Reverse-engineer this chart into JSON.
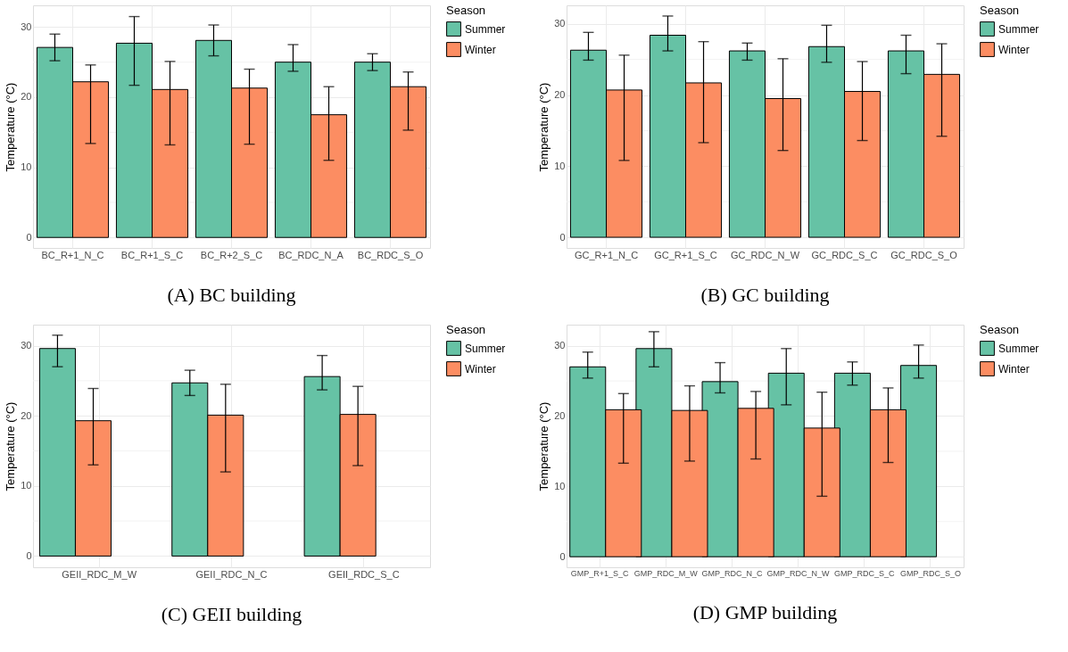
{
  "chart_data": [
    {
      "type": "bar",
      "categories": [
        "BC_R+1_N_C",
        "BC_R+1_S_C",
        "BC_R+2_S_C",
        "BC_RDC_N_A",
        "BC_RDC_S_O"
      ],
      "ylabel": "Temperature (°C)",
      "legend_title": "Season",
      "legend": "right",
      "grid": true,
      "ylim": [
        -1.5,
        33.1
      ],
      "yticks": [
        0,
        {
          "value": 5,
          "label": null
        },
        10,
        {
          "value": 15,
          "label": null
        },
        20,
        {
          "value": 25,
          "label": null
        },
        30
      ],
      "annotations": [
        "(A)  BC building"
      ],
      "series": [
        {
          "name": "Summer",
          "color": "#66c2a5",
          "values": [
            27.1,
            27.7,
            28.1,
            25.0,
            25.0
          ],
          "errors": [
            [
              25.2,
              29.0
            ],
            [
              21.7,
              31.5
            ],
            [
              25.9,
              30.3
            ],
            [
              23.7,
              27.5
            ],
            [
              23.8,
              26.2
            ]
          ]
        },
        {
          "name": "Winter",
          "color": "#fc8d62",
          "values": [
            22.2,
            21.1,
            21.3,
            17.5,
            21.5
          ],
          "errors": [
            [
              13.4,
              24.6
            ],
            [
              13.2,
              25.1
            ],
            [
              13.3,
              24.0
            ],
            [
              11.0,
              21.5
            ],
            [
              15.3,
              23.6
            ]
          ]
        }
      ]
    },
    {
      "type": "bar",
      "categories": [
        "GC_R+1_N_C",
        "GC_R+1_S_C",
        "GC_RDC_N_W",
        "GC_RDC_S_C",
        "GC_RDC_S_O"
      ],
      "ylabel": "Temperature (°C)",
      "legend_title": "Season",
      "legend": "right",
      "grid": true,
      "ylim": [
        -1.5,
        32.6
      ],
      "yticks": [
        0,
        {
          "value": 5,
          "label": null
        },
        10,
        {
          "value": 15,
          "label": null
        },
        20,
        {
          "value": 25,
          "label": null
        },
        30
      ],
      "annotations": [
        "(B)  GC building"
      ],
      "series": [
        {
          "name": "Summer",
          "color": "#66c2a5",
          "values": [
            26.3,
            28.4,
            26.2,
            26.8,
            26.2
          ],
          "errors": [
            [
              24.9,
              28.8
            ],
            [
              26.2,
              31.1
            ],
            [
              24.9,
              27.3
            ],
            [
              24.6,
              29.8
            ],
            [
              23.0,
              28.4
            ]
          ]
        },
        {
          "name": "Winter",
          "color": "#fc8d62",
          "values": [
            20.7,
            21.7,
            19.5,
            20.5,
            22.9
          ],
          "errors": [
            [
              10.8,
              25.6
            ],
            [
              13.3,
              27.5
            ],
            [
              12.2,
              25.1
            ],
            [
              13.6,
              24.7
            ],
            [
              14.2,
              27.2
            ]
          ]
        }
      ]
    },
    {
      "type": "bar",
      "categories": [
        "GEII_RDC_M_W",
        "GEII_RDC_N_C",
        "GEII_RDC_S_C"
      ],
      "ylabel": "Temperature (°C)",
      "legend_title": "Season",
      "legend": "right",
      "grid": true,
      "ylim": [
        -1.6,
        33.0
      ],
      "yticks": [
        0,
        {
          "value": 5,
          "label": null
        },
        10,
        {
          "value": 15,
          "label": null
        },
        20,
        {
          "value": 25,
          "label": null
        },
        30
      ],
      "annotations": [
        "(C)  GEII building"
      ],
      "series": [
        {
          "name": "Summer",
          "color": "#66c2a5",
          "values": [
            29.6,
            24.7,
            25.6
          ],
          "errors": [
            [
              27.0,
              31.5
            ],
            [
              22.9,
              26.5
            ],
            [
              23.7,
              28.6
            ]
          ]
        },
        {
          "name": "Winter",
          "color": "#fc8d62",
          "values": [
            19.3,
            20.1,
            20.2
          ],
          "errors": [
            [
              13.0,
              23.9
            ],
            [
              12.0,
              24.5
            ],
            [
              12.9,
              24.2
            ]
          ]
        }
      ]
    },
    {
      "type": "bar",
      "categories": [
        "GMP_R+1_S_C",
        "GMP_RDC_M_W",
        "GMP_RDC_N_C",
        "GMP_RDC_N_W",
        "GMP_RDC_S_C",
        "GMP_RDC_S_O"
      ],
      "ylabel": "Temperature (°C)",
      "legend_title": "Season",
      "legend": "right",
      "grid": true,
      "ylim": [
        -1.5,
        33.0
      ],
      "yticks": [
        0,
        {
          "value": 5,
          "label": null
        },
        10,
        {
          "value": 15,
          "label": null
        },
        20,
        {
          "value": 25,
          "label": null
        },
        30
      ],
      "annotations": [
        "(D)  GMP building"
      ],
      "series": [
        {
          "name": "Summer",
          "color": "#66c2a5",
          "values": [
            27.0,
            29.6,
            24.9,
            26.1,
            26.1,
            27.2
          ],
          "errors": [
            [
              25.4,
              29.1
            ],
            [
              27.0,
              32.0
            ],
            [
              23.3,
              27.6
            ],
            [
              21.6,
              29.6
            ],
            [
              24.4,
              27.7
            ],
            [
              25.4,
              30.1
            ]
          ]
        },
        {
          "name": "Winter",
          "color": "#fc8d62",
          "values": [
            20.9,
            20.8,
            21.1,
            18.3,
            20.9,
            null
          ],
          "errors": [
            [
              13.3,
              23.2
            ],
            [
              13.6,
              24.3
            ],
            [
              13.9,
              23.5
            ],
            [
              8.6,
              23.4
            ],
            [
              13.4,
              24.0
            ],
            null
          ]
        }
      ]
    }
  ]
}
